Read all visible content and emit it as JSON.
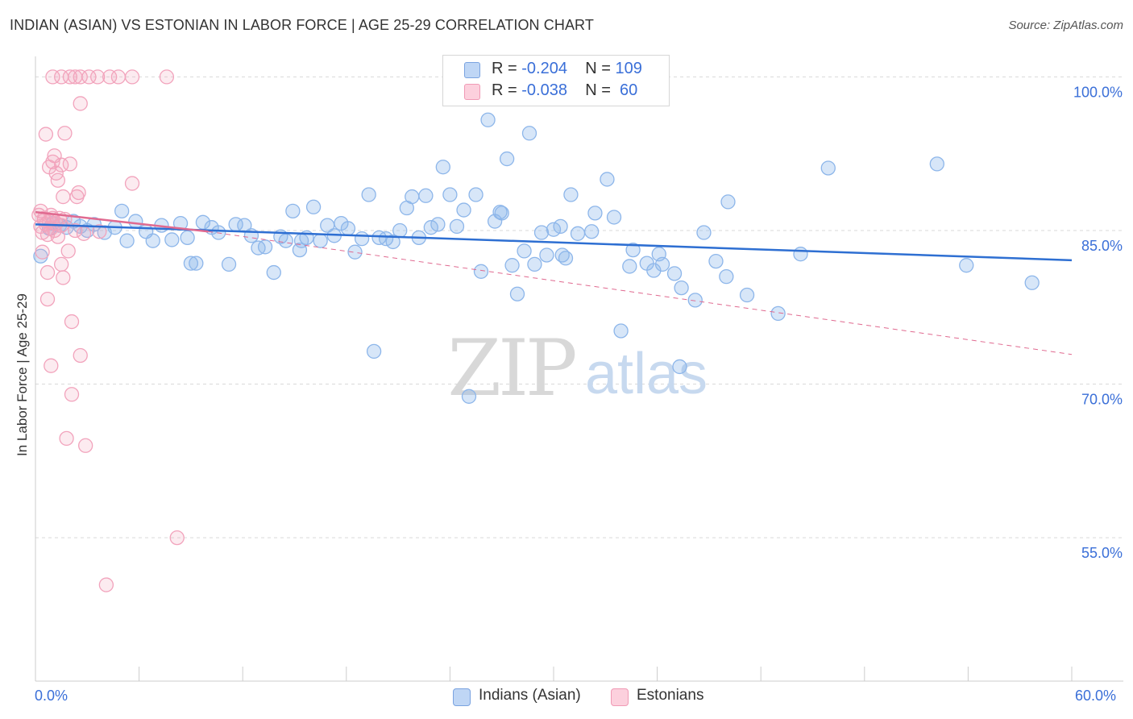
{
  "title": "INDIAN (ASIAN) VS ESTONIAN IN LABOR FORCE | AGE 25-29 CORRELATION CHART",
  "source": "Source: ZipAtlas.com",
  "legend": {
    "rows": [
      {
        "r_label": "R = ",
        "r_value": "-0.204",
        "n_label": "N = ",
        "n_value": "109"
      },
      {
        "r_label": "R = ",
        "r_value": "-0.038",
        "n_label": "N = ",
        "n_value": " 60"
      }
    ]
  },
  "bottom_legend": [
    "Indians (Asian)",
    "Estonians"
  ],
  "chart_data": {
    "type": "scatter",
    "title": "INDIAN (ASIAN) VS ESTONIAN IN LABOR FORCE | AGE 25-29 CORRELATION CHART",
    "xlabel": "",
    "ylabel": "In Labor Force | Age 25-29",
    "xlim": [
      0,
      60
    ],
    "ylim": [
      41,
      102
    ],
    "x_tick_labels": [
      "0.0%",
      "60.0%"
    ],
    "y_ticks": [
      {
        "value": 100,
        "label": "100.0%"
      },
      {
        "value": 85,
        "label": "85.0%"
      },
      {
        "value": 70,
        "label": "70.0%"
      },
      {
        "value": 55,
        "label": "55.0%"
      }
    ],
    "watermark": {
      "zip": "ZIP",
      "atlas": "atlas"
    },
    "colors": {
      "indians": "#8db6ea",
      "indians_line": "#2e6fd2",
      "estonians": "#f2a3bc",
      "estonians_line": "#e06a90"
    },
    "series": [
      {
        "name": "Indians (Asian)",
        "trend": {
          "x0": 0,
          "y0": 85.6,
          "x1": 60,
          "y1": 82.1
        },
        "points": [
          [
            0.3,
            82.5
          ],
          [
            0.8,
            85.2
          ],
          [
            1.0,
            85.7
          ],
          [
            1.4,
            85.5
          ],
          [
            1.8,
            85.3
          ],
          [
            2.2,
            85.9
          ],
          [
            2.6,
            85.4
          ],
          [
            3.0,
            85.0
          ],
          [
            3.4,
            85.6
          ],
          [
            4.0,
            84.8
          ],
          [
            4.6,
            85.3
          ],
          [
            5.0,
            86.9
          ],
          [
            5.3,
            84.0
          ],
          [
            5.8,
            85.9
          ],
          [
            6.4,
            84.9
          ],
          [
            6.8,
            84.0
          ],
          [
            7.3,
            85.5
          ],
          [
            7.9,
            84.1
          ],
          [
            8.4,
            85.7
          ],
          [
            8.8,
            84.3
          ],
          [
            9.3,
            81.8
          ],
          [
            9.7,
            85.8
          ],
          [
            10.2,
            85.3
          ],
          [
            10.6,
            84.8
          ],
          [
            11.2,
            81.7
          ],
          [
            11.6,
            85.6
          ],
          [
            12.1,
            85.5
          ],
          [
            12.5,
            84.5
          ],
          [
            12.9,
            83.3
          ],
          [
            13.3,
            83.4
          ],
          [
            13.8,
            80.9
          ],
          [
            14.2,
            84.4
          ],
          [
            14.5,
            84.0
          ],
          [
            14.9,
            86.9
          ],
          [
            15.3,
            83.1
          ],
          [
            15.7,
            84.3
          ],
          [
            16.1,
            87.3
          ],
          [
            16.5,
            84.0
          ],
          [
            16.9,
            85.5
          ],
          [
            17.3,
            84.5
          ],
          [
            17.7,
            85.7
          ],
          [
            18.1,
            85.2
          ],
          [
            18.5,
            82.9
          ],
          [
            18.9,
            84.2
          ],
          [
            19.3,
            88.5
          ],
          [
            19.6,
            73.2
          ],
          [
            19.9,
            84.3
          ],
          [
            20.3,
            84.2
          ],
          [
            20.7,
            83.9
          ],
          [
            21.1,
            85.0
          ],
          [
            21.5,
            87.2
          ],
          [
            21.8,
            88.3
          ],
          [
            22.2,
            84.3
          ],
          [
            22.6,
            88.4
          ],
          [
            22.9,
            85.3
          ],
          [
            23.3,
            85.6
          ],
          [
            23.6,
            91.2
          ],
          [
            24.0,
            88.5
          ],
          [
            24.4,
            85.4
          ],
          [
            24.8,
            87.0
          ],
          [
            25.1,
            68.8
          ],
          [
            25.5,
            88.5
          ],
          [
            25.8,
            81.0
          ],
          [
            26.2,
            95.8
          ],
          [
            26.6,
            85.9
          ],
          [
            26.9,
            86.8
          ],
          [
            27.3,
            92.0
          ],
          [
            27.6,
            81.6
          ],
          [
            27.9,
            78.8
          ],
          [
            28.3,
            83.0
          ],
          [
            28.6,
            94.5
          ],
          [
            28.9,
            81.7
          ],
          [
            29.3,
            84.8
          ],
          [
            29.6,
            82.6
          ],
          [
            30.0,
            85.1
          ],
          [
            30.4,
            85.4
          ],
          [
            30.7,
            82.3
          ],
          [
            31.0,
            88.5
          ],
          [
            31.4,
            84.7
          ],
          [
            32.2,
            84.9
          ],
          [
            32.4,
            86.7
          ],
          [
            33.1,
            90.0
          ],
          [
            33.5,
            86.3
          ],
          [
            33.9,
            75.2
          ],
          [
            34.4,
            81.5
          ],
          [
            34.6,
            83.1
          ],
          [
            35.4,
            81.8
          ],
          [
            35.8,
            81.1
          ],
          [
            36.1,
            82.7
          ],
          [
            37.0,
            80.8
          ],
          [
            37.4,
            79.4
          ],
          [
            38.2,
            78.2
          ],
          [
            38.7,
            84.8
          ],
          [
            39.4,
            82.0
          ],
          [
            40.0,
            80.5
          ],
          [
            40.1,
            87.8
          ],
          [
            41.2,
            78.7
          ],
          [
            43.0,
            76.9
          ],
          [
            44.3,
            82.7
          ],
          [
            45.9,
            91.1
          ],
          [
            36.3,
            81.7
          ],
          [
            30.5,
            82.6
          ],
          [
            52.2,
            91.5
          ],
          [
            53.9,
            81.6
          ],
          [
            57.7,
            79.9
          ],
          [
            15.4,
            84.0
          ],
          [
            9.0,
            81.8
          ],
          [
            37.3,
            71.7
          ],
          [
            27.0,
            86.7
          ]
        ]
      },
      {
        "name": "Estonians",
        "trend": {
          "x0": 0,
          "y0": 86.8,
          "x1": 10,
          "y1": 84.9
        },
        "trend_ext": {
          "x0": 10,
          "y0": 84.9,
          "x1": 60,
          "y1": 72.9
        },
        "points": [
          [
            0.2,
            86.5
          ],
          [
            0.3,
            85.4
          ],
          [
            0.4,
            84.8
          ],
          [
            0.5,
            86.0
          ],
          [
            0.6,
            85.6
          ],
          [
            0.7,
            84.6
          ],
          [
            0.8,
            85.9
          ],
          [
            0.9,
            85.2
          ],
          [
            1.0,
            86.2
          ],
          [
            1.1,
            85.0
          ],
          [
            1.2,
            85.7
          ],
          [
            1.3,
            84.4
          ],
          [
            1.4,
            86.2
          ],
          [
            1.5,
            85.5
          ],
          [
            0.6,
            94.4
          ],
          [
            0.8,
            91.2
          ],
          [
            1.0,
            91.7
          ],
          [
            1.1,
            92.3
          ],
          [
            1.2,
            90.6
          ],
          [
            1.3,
            89.9
          ],
          [
            1.5,
            91.4
          ],
          [
            1.6,
            88.3
          ],
          [
            1.7,
            94.5
          ],
          [
            2.0,
            91.5
          ],
          [
            2.4,
            88.3
          ],
          [
            2.5,
            88.7
          ],
          [
            1.5,
            81.7
          ],
          [
            1.6,
            80.4
          ],
          [
            0.7,
            80.9
          ],
          [
            0.7,
            78.3
          ],
          [
            2.1,
            76.1
          ],
          [
            2.6,
            72.8
          ],
          [
            0.9,
            71.8
          ],
          [
            2.1,
            69.0
          ],
          [
            1.8,
            64.7
          ],
          [
            2.9,
            64.0
          ],
          [
            8.2,
            55.0
          ],
          [
            4.1,
            50.4
          ],
          [
            2.6,
            97.4
          ],
          [
            1.0,
            100.0
          ],
          [
            1.5,
            100.0
          ],
          [
            2.0,
            100.0
          ],
          [
            2.3,
            100.0
          ],
          [
            2.6,
            100.0
          ],
          [
            3.1,
            100.0
          ],
          [
            3.6,
            100.0
          ],
          [
            4.3,
            100.0
          ],
          [
            5.6,
            100.0
          ],
          [
            7.6,
            100.0
          ],
          [
            4.8,
            100.0
          ],
          [
            1.9,
            83.0
          ],
          [
            2.8,
            84.7
          ],
          [
            3.7,
            84.9
          ],
          [
            5.6,
            89.6
          ],
          [
            0.4,
            82.9
          ],
          [
            0.9,
            86.5
          ],
          [
            1.7,
            86.1
          ],
          [
            2.3,
            85.0
          ],
          [
            0.3,
            86.9
          ],
          [
            0.5,
            86.2
          ]
        ]
      }
    ]
  }
}
